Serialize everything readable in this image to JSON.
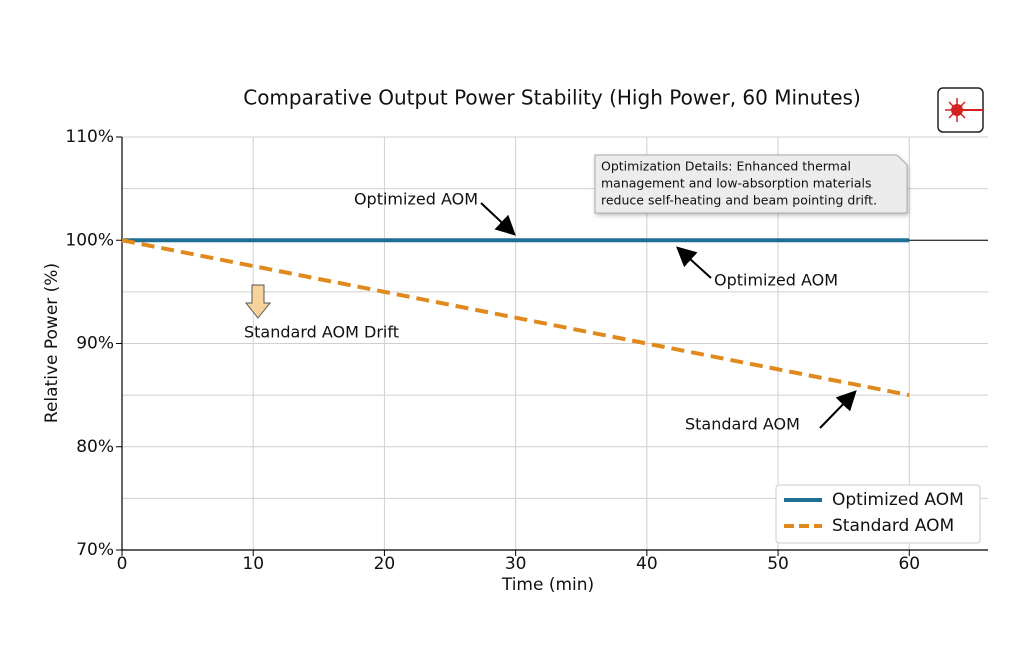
{
  "chart_data": {
    "type": "line",
    "title": "Comparative Output Power Stability (High Power, 60 Minutes)",
    "xlabel": "Time (min)",
    "ylabel": "Relative Power (%)",
    "x": [
      0,
      60
    ],
    "series": [
      {
        "name": "Optimized AOM",
        "color": "#1f6e96",
        "style": "solid",
        "values": [
          100,
          100
        ]
      },
      {
        "name": "Standard AOM",
        "color": "#e08a1e",
        "style": "dashed",
        "values": [
          100,
          85
        ]
      }
    ],
    "reference_line": 100,
    "xlim": [
      0,
      66
    ],
    "ylim": [
      70,
      110
    ],
    "xticks": [
      0,
      10,
      20,
      30,
      40,
      50,
      60
    ],
    "yticks": [
      {
        "value": 70,
        "label": "70%"
      },
      {
        "value": 80,
        "label": "80%"
      },
      {
        "value": 90,
        "label": "90%"
      },
      {
        "value": 100,
        "label": "100%"
      },
      {
        "value": 110,
        "label": "110%"
      }
    ],
    "minor_yticks": [
      75,
      85,
      95,
      105
    ],
    "grid": true,
    "legend": "lower right",
    "annotations": [
      "Optimized AOM",
      "Optimized AOM",
      "Standard AOM",
      "Standard AOM Drift"
    ],
    "info_box": [
      "Optimization Details: Enhanced thermal",
      "management and low-absorption materials",
      "reduce self-heating and beam pointing drift."
    ]
  }
}
